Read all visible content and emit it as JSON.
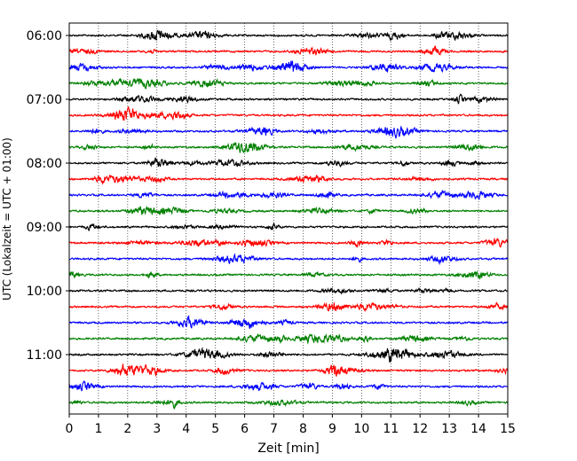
{
  "chart_data": {
    "type": "line",
    "title": "",
    "xlabel": "Zeit  [min]",
    "ylabel": "UTC (Lokalzeit = UTC + 01:00)",
    "xlim": [
      0,
      15
    ],
    "x_ticks": [
      "0",
      "1",
      "2",
      "3",
      "4",
      "5",
      "6",
      "7",
      "8",
      "9",
      "10",
      "11",
      "12",
      "13",
      "14",
      "15"
    ],
    "y_tick_labels": [
      "06:00",
      "07:00",
      "08:00",
      "09:00",
      "10:00",
      "11:00"
    ],
    "grid": "vertical dotted lines at each minute",
    "trace_colors": [
      "#000000",
      "#ff0000",
      "#0000ff",
      "#008000"
    ],
    "trace_rows_utc": [
      "06:00",
      "06:15",
      "06:30",
      "06:45",
      "07:00",
      "07:15",
      "07:30",
      "07:45",
      "08:00",
      "08:15",
      "08:30",
      "08:45",
      "09:00",
      "09:15",
      "09:30",
      "09:45",
      "10:00",
      "10:15",
      "10:30",
      "10:45",
      "11:00",
      "11:15",
      "11:30",
      "11:45"
    ]
  }
}
